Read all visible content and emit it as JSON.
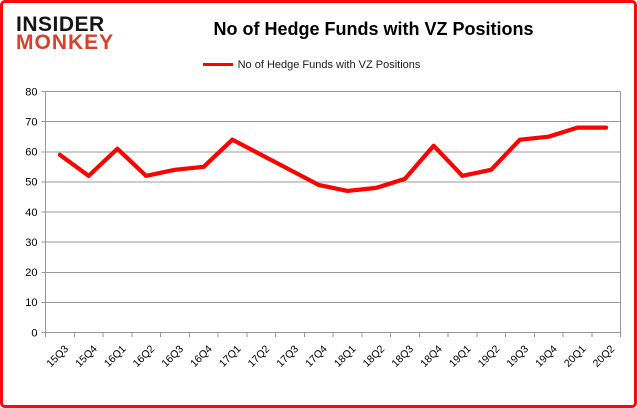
{
  "logo": {
    "line1": "INSIDER",
    "line2": "MONKEY"
  },
  "header": {
    "title": "No of Hedge Funds with VZ Positions"
  },
  "legend": {
    "label": "No of Hedge Funds with VZ Positions"
  },
  "colors": {
    "line": "#fe0101",
    "grid": "#999999",
    "axis_text": "#000000",
    "page_border": "#fb0a0a",
    "logo_black": "#151515",
    "logo_red": "#d8402c"
  },
  "chart_data": {
    "type": "line",
    "title": "No of Hedge Funds with VZ Positions",
    "xlabel": "",
    "ylabel": "",
    "categories": [
      "15Q3",
      "15Q4",
      "16Q1",
      "16Q2",
      "16Q3",
      "16Q4",
      "17Q1",
      "17Q2",
      "17Q3",
      "17Q4",
      "18Q1",
      "18Q2",
      "18Q3",
      "18Q4",
      "19Q1",
      "19Q2",
      "19Q3",
      "19Q4",
      "20Q1",
      "20Q2"
    ],
    "series": [
      {
        "name": "No of Hedge Funds with VZ Positions",
        "values": [
          59,
          52,
          61,
          52,
          54,
          55,
          64,
          59,
          54,
          49,
          47,
          48,
          51,
          62,
          52,
          54,
          64,
          65,
          68,
          68
        ]
      }
    ],
    "ylim": [
      0,
      80
    ],
    "y_ticks": [
      0,
      10,
      20,
      30,
      40,
      50,
      60,
      70,
      80
    ],
    "grid": "horizontal",
    "legend_position": "top"
  }
}
